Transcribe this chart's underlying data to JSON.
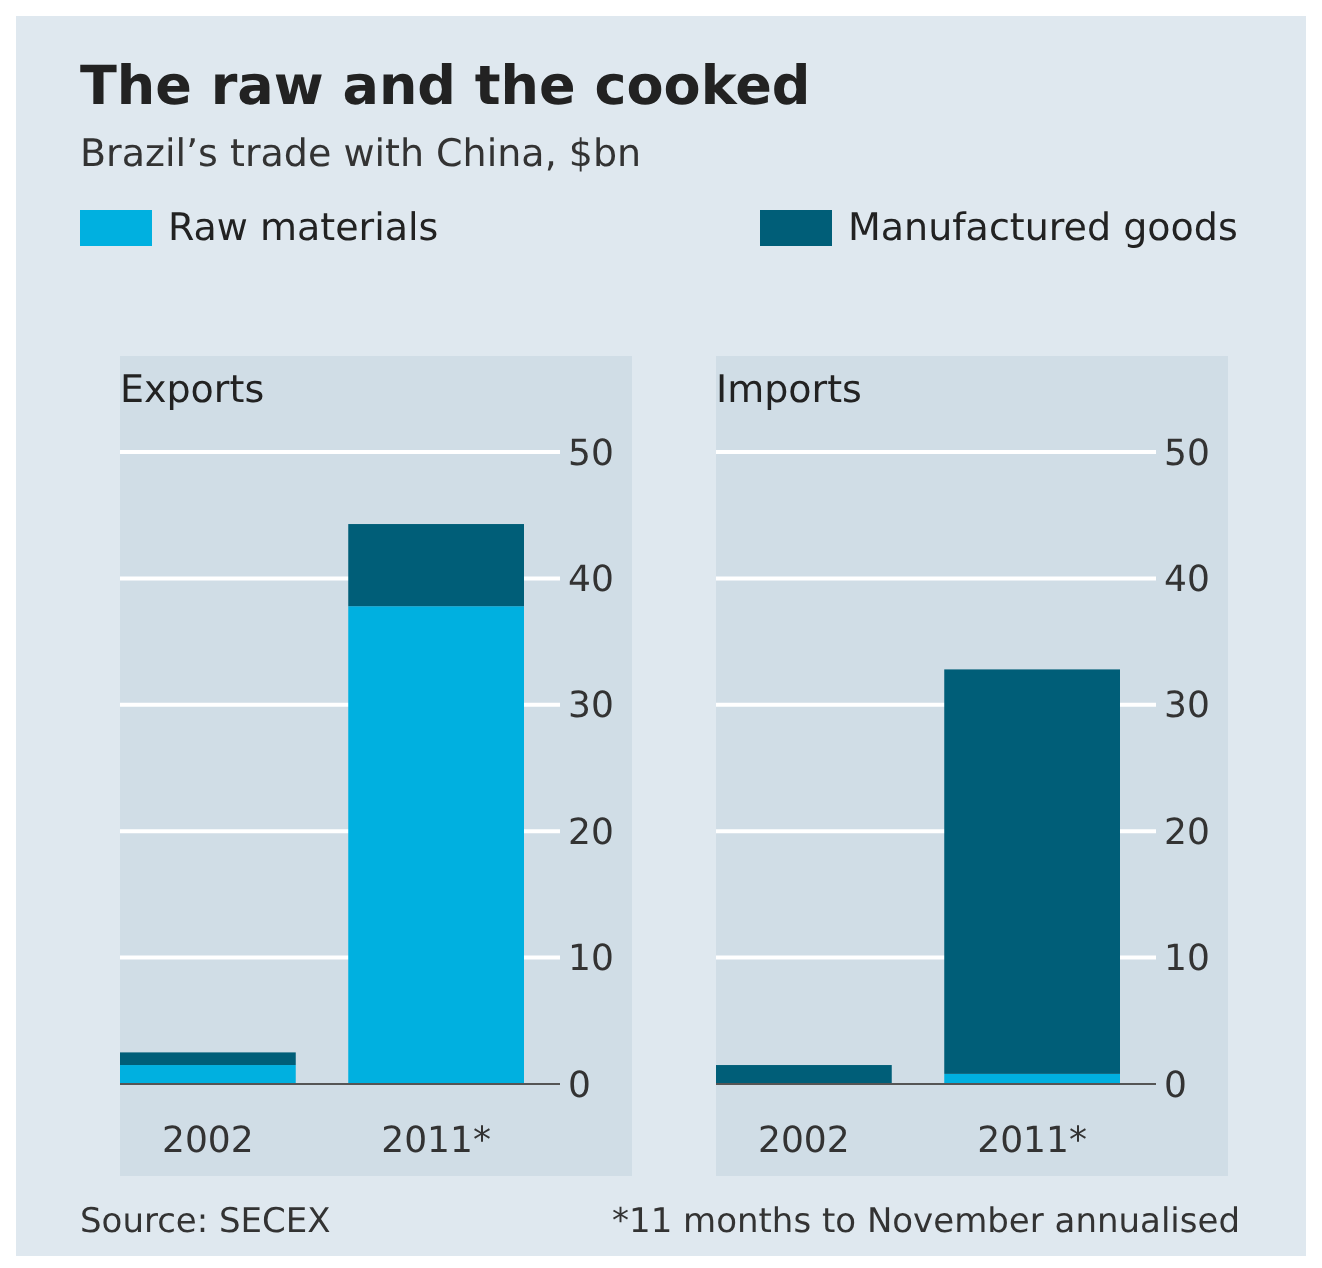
{
  "chart_data": [
    {
      "type": "bar",
      "title": "Exports",
      "categories": [
        "2002",
        "2011*"
      ],
      "stacked": true,
      "legend": "top",
      "grid": "y",
      "ylim": [
        0,
        50
      ],
      "yticks": [
        0,
        10,
        20,
        30,
        40,
        50
      ],
      "series": [
        {
          "name": "Raw materials",
          "color": "#00b0e0",
          "values": [
            1.5,
            37.8
          ]
        },
        {
          "name": "Manufactured goods",
          "color": "#005e78",
          "values": [
            1.0,
            6.5
          ]
        }
      ],
      "annotations": [
        "The raw and the cooked",
        "Brazil’s trade with China, $bn",
        "Source: SECEX"
      ]
    },
    {
      "type": "bar",
      "title": "Imports",
      "categories": [
        "2002",
        "2011*"
      ],
      "stacked": true,
      "grid": "y",
      "ylim": [
        0,
        50
      ],
      "yticks": [
        0,
        10,
        20,
        30,
        40,
        50
      ],
      "series": [
        {
          "color": "#00b0e0",
          "values": [
            0,
            0.8
          ]
        },
        {
          "color": "#005e78",
          "values": [
            1.5,
            32.0
          ]
        }
      ],
      "annotations": [
        "*11 months to November annualised"
      ]
    }
  ]
}
